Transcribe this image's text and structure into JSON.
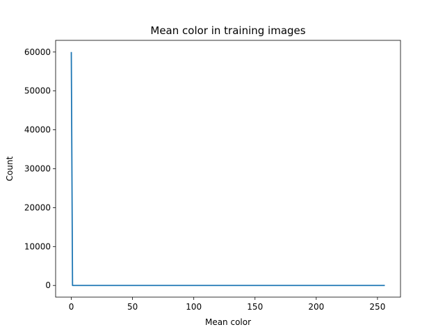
{
  "chart_data": {
    "type": "line",
    "title": "Mean color in training images",
    "xlabel": "Mean color",
    "ylabel": "Count",
    "xlim": [
      -12.8,
      268.8
    ],
    "ylim": [
      -3000,
      63000
    ],
    "xticks": [
      0,
      50,
      100,
      150,
      200,
      250
    ],
    "yticks": [
      0,
      10000,
      20000,
      30000,
      40000,
      50000,
      60000
    ],
    "grid": false,
    "series": [
      {
        "color": "#1f77b4",
        "x": [
          0,
          1,
          2,
          256
        ],
        "y": [
          60000,
          0,
          0,
          0
        ]
      }
    ]
  }
}
